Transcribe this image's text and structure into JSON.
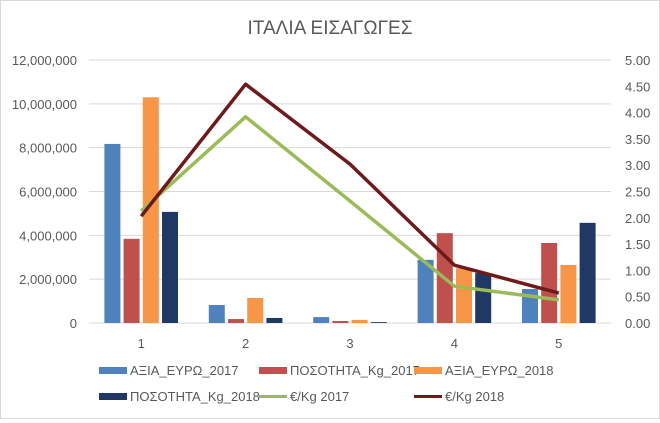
{
  "chart_data": {
    "type": "bar",
    "title": "ΙΤΑΛΙΑ ΕΙΣΑΓΩΓΕΣ",
    "categories": [
      "1",
      "2",
      "3",
      "4",
      "5"
    ],
    "y_left": {
      "min": 0,
      "max": 12000000,
      "step": 2000000,
      "ticks": [
        "0",
        "2,000,000",
        "4,000,000",
        "6,000,000",
        "8,000,000",
        "10,000,000",
        "12,000,000"
      ]
    },
    "y_right": {
      "min": 0,
      "max": 5,
      "step": 0.5,
      "ticks": [
        "0.00",
        "0.50",
        "1.00",
        "1.50",
        "2.00",
        "2.50",
        "3.00",
        "3.50",
        "4.00",
        "4.50",
        "5.00"
      ]
    },
    "grid": true,
    "legend_position": "bottom",
    "series": [
      {
        "name": "ΑΞΙΑ_ΕΥΡΩ_2017",
        "kind": "bar",
        "axis": "left",
        "color": "#4f81bd",
        "values": [
          8170000,
          820000,
          270000,
          2880000,
          1550000
        ]
      },
      {
        "name": "ΠΟΣΟΤΗΤΑ_Kg_2017",
        "kind": "bar",
        "axis": "left",
        "color": "#c0504d",
        "values": [
          3840000,
          180000,
          90000,
          4100000,
          3650000
        ]
      },
      {
        "name": "ΑΞΙΑ_ΕΥΡΩ_2018",
        "kind": "bar",
        "axis": "left",
        "color": "#f79646",
        "values": [
          10300000,
          1140000,
          140000,
          2500000,
          2650000
        ]
      },
      {
        "name": "ΠΟΣΟΤΗΤΑ_Kg_2018",
        "kind": "bar",
        "axis": "left",
        "color": "#1f3864",
        "values": [
          5070000,
          230000,
          40000,
          2280000,
          4570000
        ]
      },
      {
        "name": "€/Kg 2017",
        "kind": "line",
        "axis": "right",
        "color": "#9bbb59",
        "values": [
          2.13,
          3.92,
          2.32,
          0.7,
          0.44
        ]
      },
      {
        "name": "€/Kg 2018",
        "kind": "line",
        "axis": "right",
        "color": "#6e1a1a",
        "values": [
          2.03,
          4.54,
          3.02,
          1.1,
          0.57
        ]
      }
    ]
  }
}
